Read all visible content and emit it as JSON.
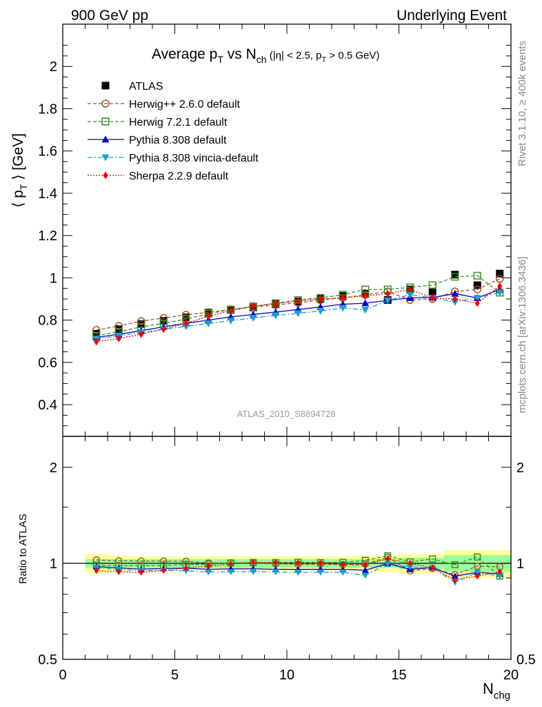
{
  "header": {
    "left": "900 GeV pp",
    "right": "Underlying Event"
  },
  "side": {
    "rivet": "Rivet 3.1.10, ≥ 400k events",
    "mcplots": "mcplots.cern.ch [arXiv:1306.3436]"
  },
  "chart_data": [
    {
      "type": "line",
      "title": "Average p_T vs N_ch (|η| < 2.5, p_T > 0.5 GeV)",
      "title_parts": {
        "a": "Average p",
        "a_sub": "T",
        "b": " vs N",
        "b_sub": "ch",
        "c": " (|η| < 2.5, p",
        "c_sub": "T",
        "d": " > 0.5 GeV)"
      },
      "ylabel": "⟨ p_T ⟩ [GeV]",
      "ylabel_parts": {
        "pre": "⟨ p",
        "sub": "T",
        "post": " ⟩ [GeV]"
      },
      "watermark": "ATLAS_2010_S8894728",
      "xlim": [
        0,
        20
      ],
      "ylim": [
        0.25,
        2.2
      ],
      "yticks": [
        0.4,
        0.6,
        0.8,
        1,
        1.2,
        1.4,
        1.6,
        1.8,
        2
      ],
      "ytick_labels": [
        "0.4",
        "0.6",
        "0.8",
        "1",
        "1.2",
        "1.4",
        "1.6",
        "1.8",
        "2"
      ],
      "legend_position": "top-left",
      "x": [
        1.5,
        2.5,
        3.5,
        4.5,
        5.5,
        6.5,
        7.5,
        8.5,
        9.5,
        10.5,
        11.5,
        12.5,
        13.5,
        14.5,
        15.5,
        16.5,
        17.5,
        18.5,
        19.5
      ],
      "series": [
        {
          "name": "ATLAS",
          "color": "#000000",
          "marker": "square-filled",
          "line": "none",
          "values": [
            0.735,
            0.758,
            0.782,
            0.797,
            0.813,
            0.835,
            0.848,
            0.86,
            0.875,
            0.888,
            0.9,
            0.914,
            0.925,
            0.895,
            0.945,
            0.935,
            1.015,
            0.965,
            1.02
          ]
        },
        {
          "name": "Herwig++ 2.6.0 default",
          "color": "#a0522d",
          "marker": "circle-open",
          "line": "dashed",
          "values": [
            0.753,
            0.772,
            0.795,
            0.81,
            0.825,
            0.837,
            0.85,
            0.862,
            0.872,
            0.882,
            0.895,
            0.905,
            0.92,
            0.935,
            0.895,
            0.9,
            0.935,
            0.945,
            0.995
          ]
        },
        {
          "name": "Herwig 7.2.1 default",
          "color": "#3a8f1e",
          "marker": "square-open",
          "line": "dashed",
          "values": [
            0.725,
            0.745,
            0.768,
            0.785,
            0.805,
            0.83,
            0.85,
            0.865,
            0.88,
            0.895,
            0.905,
            0.92,
            0.945,
            0.945,
            0.955,
            0.965,
            1.005,
            1.01,
            0.93
          ]
        },
        {
          "name": "Pythia 8.308 default",
          "color": "#0000cc",
          "marker": "triangle-up",
          "line": "solid",
          "values": [
            0.718,
            0.733,
            0.75,
            0.768,
            0.785,
            0.8,
            0.815,
            0.827,
            0.838,
            0.85,
            0.862,
            0.875,
            0.88,
            0.893,
            0.905,
            0.907,
            0.925,
            0.905,
            0.945
          ]
        },
        {
          "name": "Pythia 8.308 vincia-default",
          "color": "#1f9fc2",
          "marker": "triangle-down",
          "line": "dashdot",
          "values": [
            0.712,
            0.725,
            0.742,
            0.757,
            0.77,
            0.784,
            0.797,
            0.81,
            0.822,
            0.832,
            0.843,
            0.857,
            0.848,
            0.893,
            0.92,
            0.905,
            0.885,
            0.905,
            0.93
          ]
        },
        {
          "name": "Sherpa 2.2.9 default",
          "color": "#ee0000",
          "marker": "diamond",
          "line": "dotted",
          "values": [
            0.698,
            0.713,
            0.733,
            0.757,
            0.785,
            0.818,
            0.845,
            0.865,
            0.878,
            0.89,
            0.9,
            0.905,
            0.915,
            0.925,
            0.945,
            0.905,
            0.9,
            0.88,
            0.96
          ]
        }
      ]
    },
    {
      "type": "line",
      "ylabel": "Ratio to ATLAS",
      "xlabel": "N_chg",
      "xlabel_parts": {
        "main": "N",
        "sub": "chg"
      },
      "xlim": [
        0,
        20
      ],
      "ylim": [
        0.5,
        2.5
      ],
      "scale": "log",
      "xticks": [
        0,
        5,
        10,
        15,
        20
      ],
      "xtick_labels": [
        "0",
        "5",
        "10",
        "15",
        "20"
      ],
      "yticks": [
        0.5,
        1,
        2
      ],
      "ytick_labels": [
        "0.5",
        "1",
        "2"
      ],
      "band_inner_halfwidth": [
        0.03,
        0.03,
        0.03,
        0.03,
        0.03,
        0.03,
        0.03,
        0.03,
        0.03,
        0.03,
        0.03,
        0.03,
        0.03,
        0.03,
        0.04,
        0.04,
        0.06,
        0.06,
        0.06
      ],
      "band_outer_halfwidth": [
        0.07,
        0.06,
        0.05,
        0.05,
        0.05,
        0.05,
        0.05,
        0.05,
        0.05,
        0.05,
        0.05,
        0.05,
        0.06,
        0.06,
        0.07,
        0.07,
        0.1,
        0.1,
        0.1
      ]
    }
  ]
}
